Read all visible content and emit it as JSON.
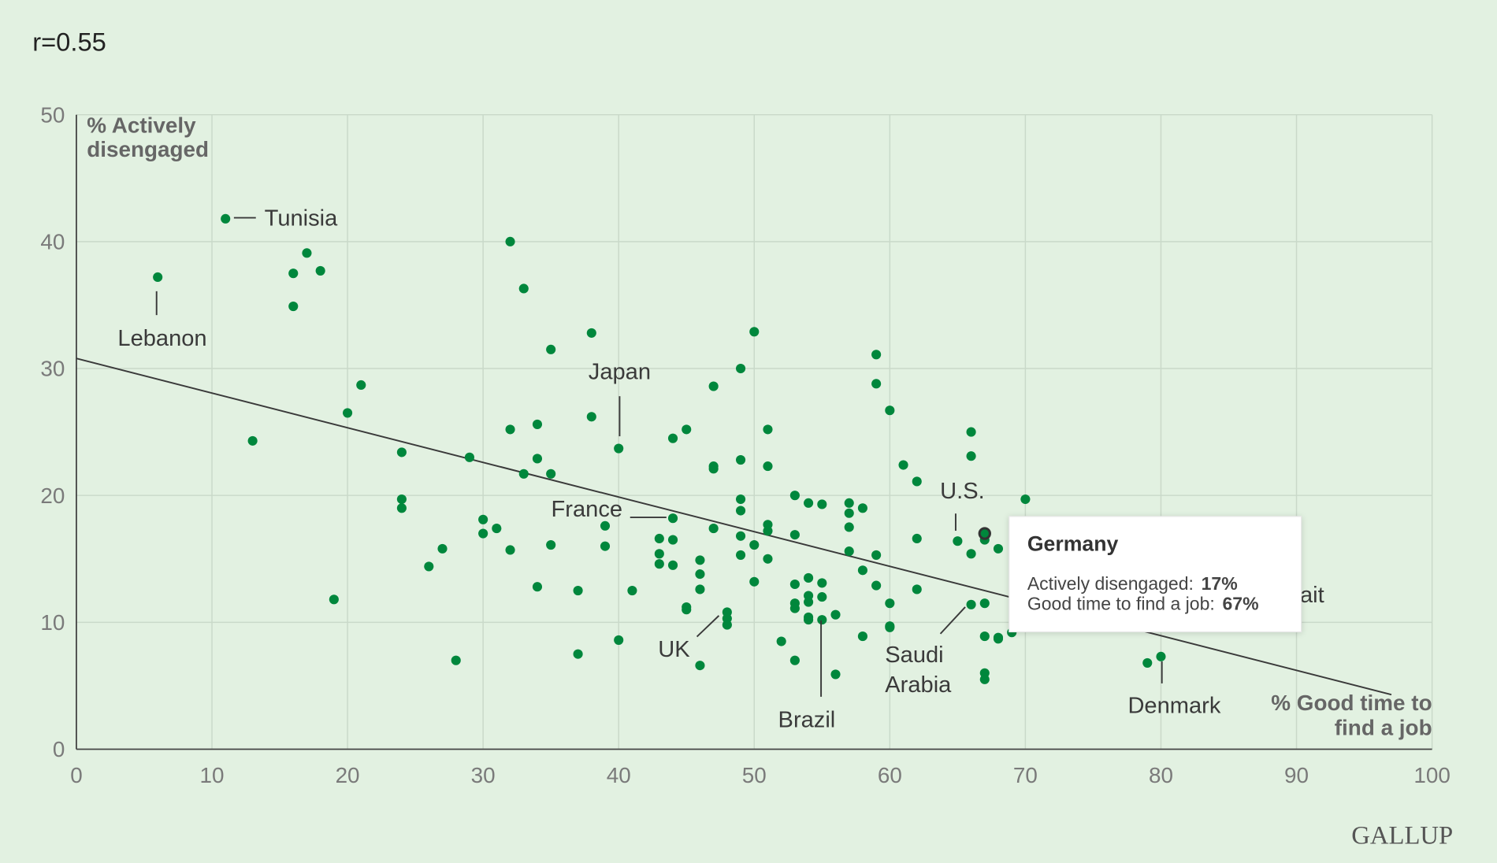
{
  "subtitle": "r=0.55",
  "logo": "GALLUP",
  "tooltip": {
    "country": "Germany",
    "line1_label": "Actively disengaged:",
    "line1_value": "17%",
    "line2_label": "Good time to find a job:",
    "line2_value": "67%"
  },
  "colors": {
    "background": "#e2f1e1",
    "dot": "#00873c",
    "trend": "#3a3a3a"
  },
  "chart_data": {
    "type": "scatter",
    "title": "r=0.55",
    "xlabel": [
      "% Good time to",
      "find a job"
    ],
    "ylabel": [
      "% Actively",
      "disengaged"
    ],
    "xlim": [
      0,
      100
    ],
    "ylim": [
      0,
      50
    ],
    "xticks": [
      "0",
      "10",
      "20",
      "30",
      "40",
      "50",
      "60",
      "70",
      "80",
      "90",
      "100"
    ],
    "yticks": [
      "0",
      "10",
      "20",
      "30",
      "40",
      "50"
    ],
    "grid": true,
    "trendline": {
      "x": [
        0,
        97
      ],
      "y": [
        30.8,
        4.3
      ]
    },
    "highlighted": {
      "name": "Germany",
      "x": 67,
      "y": 17
    },
    "labels": [
      {
        "name": "Tunisia",
        "x": 11,
        "y": 41.8
      },
      {
        "name": "Lebanon",
        "x": 6,
        "y": 37.2
      },
      {
        "name": "Japan",
        "x": 40,
        "y": 23.7
      },
      {
        "name": "France",
        "x": 44,
        "y": 18.2
      },
      {
        "name": "UK",
        "x": 48,
        "y": 10.8
      },
      {
        "name": "Brazil",
        "x": 55,
        "y": 10.2
      },
      {
        "name": "Saudi Arabia",
        "x": 66,
        "y": 11.4
      },
      {
        "name": "U.S.",
        "x": 65,
        "y": 16.4
      },
      {
        "name": "Denmark",
        "x": 80,
        "y": 7.3
      },
      {
        "name": "Kuwait",
        "x": 79,
        "y": 10
      }
    ],
    "points": [
      [
        6,
        37.2
      ],
      [
        11,
        41.8
      ],
      [
        16,
        37.5
      ],
      [
        17,
        39.1
      ],
      [
        18,
        37.7
      ],
      [
        16,
        34.9
      ],
      [
        13,
        24.3
      ],
      [
        19,
        11.8
      ],
      [
        20,
        26.5
      ],
      [
        21,
        28.7
      ],
      [
        24,
        23.4
      ],
      [
        24,
        19.7
      ],
      [
        24,
        19.0
      ],
      [
        26,
        14.4
      ],
      [
        27,
        15.8
      ],
      [
        28,
        7.0
      ],
      [
        29,
        23.0
      ],
      [
        30,
        18.1
      ],
      [
        30,
        17.0
      ],
      [
        31,
        17.4
      ],
      [
        32,
        15.7
      ],
      [
        32,
        25.2
      ],
      [
        32,
        40.0
      ],
      [
        33,
        36.3
      ],
      [
        33,
        21.7
      ],
      [
        34,
        25.6
      ],
      [
        34,
        22.9
      ],
      [
        34,
        12.8
      ],
      [
        35,
        31.5
      ],
      [
        35,
        21.7
      ],
      [
        35,
        16.1
      ],
      [
        37,
        12.5
      ],
      [
        37,
        7.5
      ],
      [
        38,
        32.8
      ],
      [
        38,
        26.2
      ],
      [
        39,
        17.6
      ],
      [
        39,
        16.0
      ],
      [
        40,
        23.7
      ],
      [
        40,
        8.6
      ],
      [
        41,
        12.5
      ],
      [
        43,
        16.6
      ],
      [
        43,
        15.4
      ],
      [
        43,
        14.6
      ],
      [
        44,
        24.5
      ],
      [
        44,
        18.2
      ],
      [
        44,
        16.5
      ],
      [
        44,
        14.5
      ],
      [
        45,
        25.2
      ],
      [
        45,
        11.2
      ],
      [
        45,
        11.0
      ],
      [
        46,
        14.9
      ],
      [
        46,
        13.8
      ],
      [
        46,
        12.6
      ],
      [
        46,
        6.6
      ],
      [
        47,
        28.6
      ],
      [
        47,
        22.3
      ],
      [
        47,
        22.1
      ],
      [
        47,
        17.4
      ],
      [
        48,
        10.8
      ],
      [
        48,
        10.3
      ],
      [
        48,
        9.8
      ],
      [
        49,
        30.0
      ],
      [
        49,
        22.8
      ],
      [
        49,
        19.7
      ],
      [
        49,
        18.8
      ],
      [
        49,
        16.8
      ],
      [
        49,
        15.3
      ],
      [
        50,
        32.9
      ],
      [
        50,
        16.1
      ],
      [
        50,
        13.2
      ],
      [
        51,
        25.2
      ],
      [
        51,
        22.3
      ],
      [
        51,
        17.7
      ],
      [
        51,
        17.2
      ],
      [
        51,
        15.0
      ],
      [
        52,
        8.5
      ],
      [
        53,
        20.0
      ],
      [
        53,
        16.9
      ],
      [
        53,
        13.0
      ],
      [
        53,
        11.5
      ],
      [
        53,
        11.1
      ],
      [
        53,
        7.0
      ],
      [
        54,
        19.4
      ],
      [
        54,
        13.5
      ],
      [
        54,
        12.1
      ],
      [
        54,
        11.6
      ],
      [
        54,
        10.4
      ],
      [
        54,
        10.2
      ],
      [
        55,
        19.3
      ],
      [
        55,
        13.1
      ],
      [
        55,
        12.0
      ],
      [
        55,
        10.2
      ],
      [
        56,
        10.6
      ],
      [
        56,
        5.9
      ],
      [
        57,
        19.4
      ],
      [
        57,
        18.6
      ],
      [
        57,
        17.5
      ],
      [
        57,
        15.6
      ],
      [
        58,
        19.0
      ],
      [
        58,
        14.1
      ],
      [
        58,
        8.9
      ],
      [
        59,
        31.1
      ],
      [
        59,
        28.8
      ],
      [
        59,
        15.3
      ],
      [
        59,
        12.9
      ],
      [
        60,
        26.7
      ],
      [
        60,
        11.5
      ],
      [
        60,
        9.7
      ],
      [
        60,
        9.6
      ],
      [
        61,
        22.4
      ],
      [
        62,
        21.1
      ],
      [
        62,
        16.6
      ],
      [
        62,
        12.6
      ],
      [
        65,
        16.4
      ],
      [
        66,
        25.0
      ],
      [
        66,
        23.1
      ],
      [
        66,
        15.4
      ],
      [
        66,
        11.4
      ],
      [
        67,
        16.5
      ],
      [
        67,
        11.5
      ],
      [
        67,
        8.9
      ],
      [
        67,
        6.0
      ],
      [
        67,
        5.5
      ],
      [
        68,
        15.8
      ],
      [
        68,
        8.8
      ],
      [
        68,
        8.7
      ],
      [
        69,
        9.2
      ],
      [
        70,
        19.7
      ],
      [
        79,
        6.8
      ],
      [
        80,
        7.3
      ]
    ]
  }
}
